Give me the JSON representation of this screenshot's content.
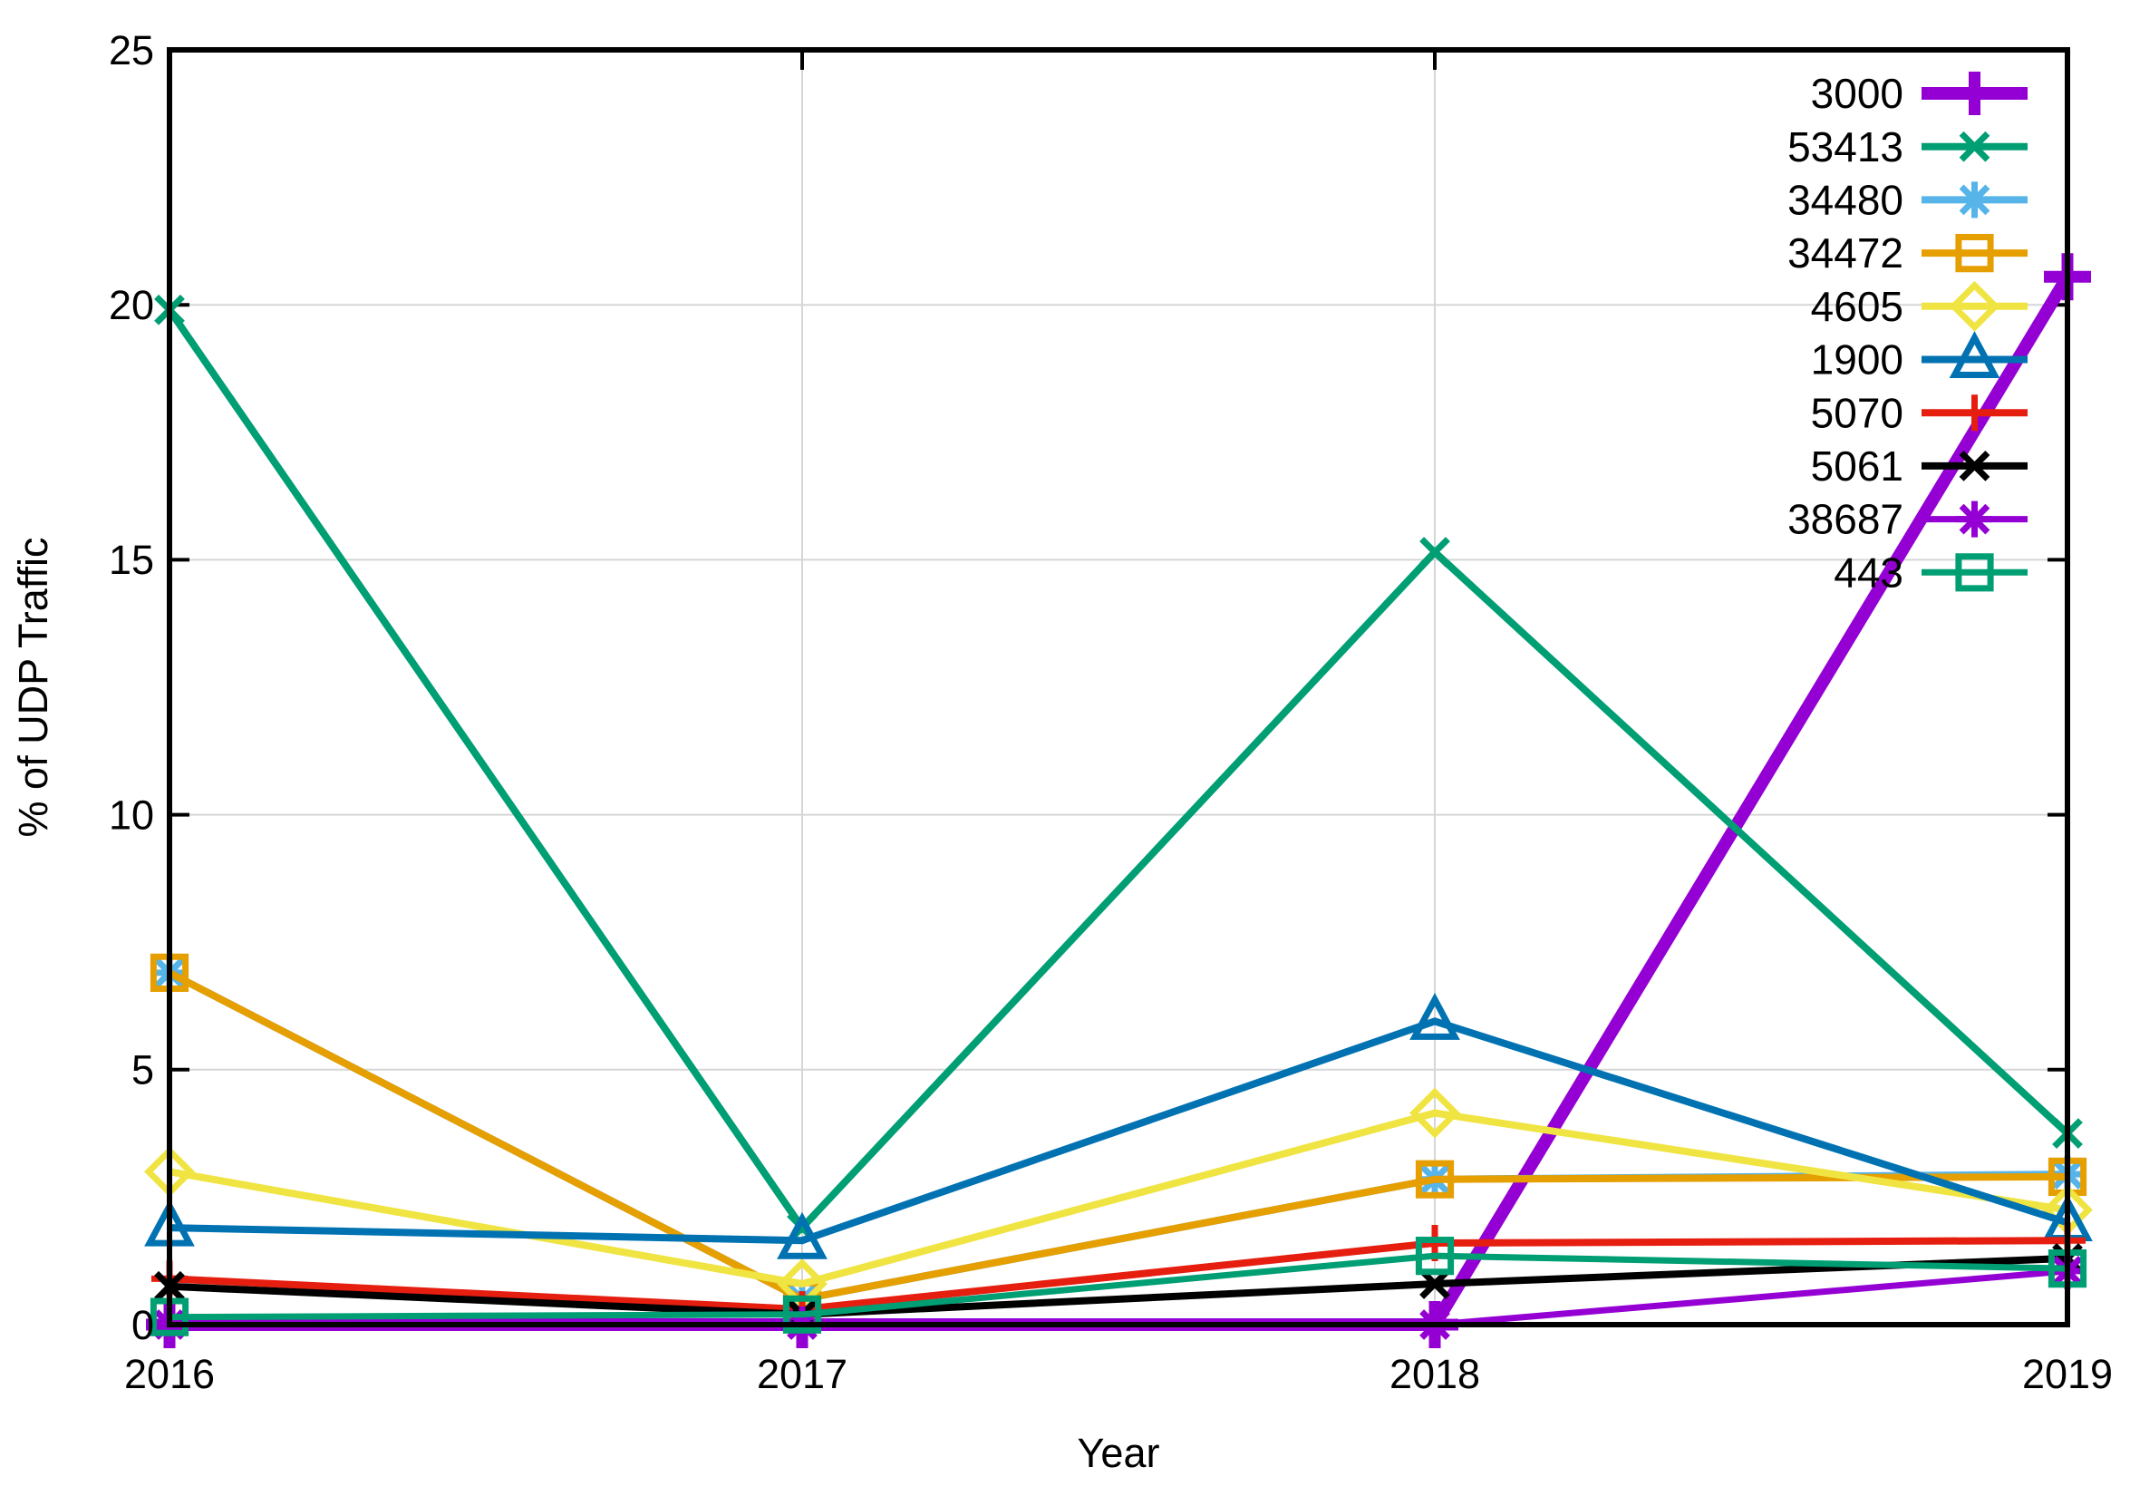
{
  "figure": {
    "background": "#ffffff",
    "axis_color": "#000000",
    "grid_color": "#d6d6d6"
  },
  "chart_data": {
    "type": "line",
    "title": "",
    "xlabel": "Year",
    "ylabel": "% of UDP Traffic",
    "categories": [
      2016,
      2017,
      2018,
      2019
    ],
    "x_tick_labels": [
      "2016",
      "2017",
      "2018",
      "2019"
    ],
    "y_tick_labels": [
      "0",
      "5",
      "10",
      "15",
      "20",
      "25"
    ],
    "yticks": [
      0,
      5,
      10,
      15,
      20,
      25
    ],
    "ylim": [
      0,
      25
    ],
    "grid": true,
    "legend_position": "top-right-inside",
    "series": [
      {
        "name": "3000",
        "color": "#9400d3",
        "marker": "plus",
        "line_width": 14,
        "values": [
          0,
          0,
          0,
          20.55
        ]
      },
      {
        "name": "53413",
        "color": "#009e73",
        "marker": "cross",
        "line_width": 8,
        "values": [
          19.9,
          1.9,
          15.15,
          3.75
        ]
      },
      {
        "name": "34480",
        "color": "#56b4e9",
        "marker": "asterisk",
        "line_width": 8,
        "values": [
          6.9,
          0.5,
          2.85,
          2.95
        ]
      },
      {
        "name": "34472",
        "color": "#e69f00",
        "marker": "square",
        "line_width": 8,
        "values": [
          6.9,
          0.5,
          2.85,
          2.9
        ]
      },
      {
        "name": "4605",
        "color": "#f0e442",
        "marker": "diamond",
        "line_width": 8,
        "values": [
          3.0,
          0.8,
          4.15,
          2.25
        ]
      },
      {
        "name": "1900",
        "color": "#0072b2",
        "marker": "triangle",
        "line_width": 8,
        "values": [
          1.9,
          1.65,
          5.95,
          2.0
        ]
      },
      {
        "name": "5070",
        "color": "#e51e10",
        "marker": "plus",
        "line_width": 8,
        "values": [
          0.9,
          0.3,
          1.6,
          1.65
        ]
      },
      {
        "name": "5061",
        "color": "#000000",
        "marker": "cross",
        "line_width": 8,
        "values": [
          0.75,
          0.2,
          0.8,
          1.3
        ]
      },
      {
        "name": "38687",
        "color": "#9400d3",
        "marker": "asterisk",
        "line_width": 7,
        "values": [
          0,
          0,
          0,
          1.05
        ]
      },
      {
        "name": "443",
        "color": "#009e73",
        "marker": "square",
        "line_width": 7,
        "values": [
          0.15,
          0.2,
          1.35,
          1.1
        ]
      }
    ]
  }
}
